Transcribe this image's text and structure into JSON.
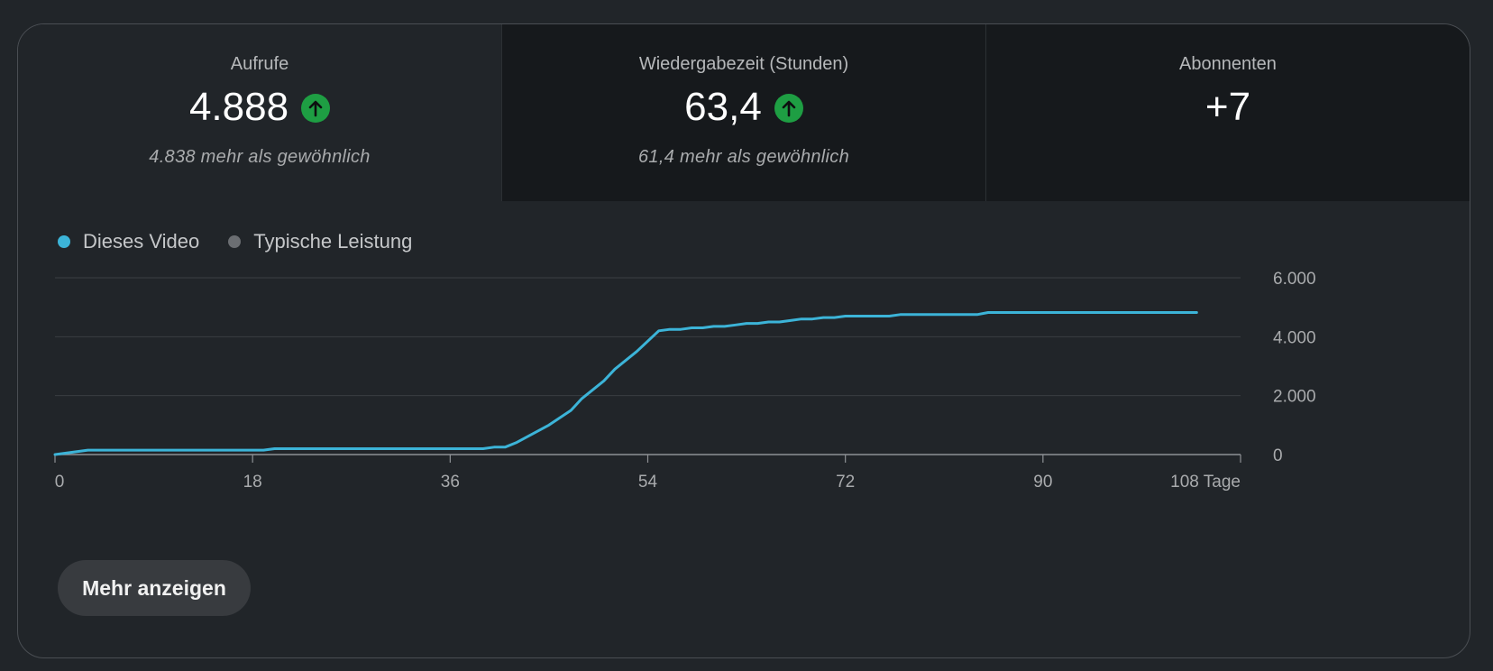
{
  "metrics": [
    {
      "title": "Aufrufe",
      "value": "4.888",
      "trend": "up",
      "subtitle": "4.838 mehr als gewöhnlich"
    },
    {
      "title": "Wiedergabezeit (Stunden)",
      "value": "63,4",
      "trend": "up",
      "subtitle": "61,4 mehr als gewöhnlich"
    },
    {
      "title": "Abonnenten",
      "value": "+7"
    }
  ],
  "icons": {
    "trend_up": "arrow-up-circle-icon"
  },
  "colors": {
    "series_this_video": "#3cb4d8",
    "series_typical": "#6b6e72",
    "trend_up": "#1e9e43",
    "selected_tab_bg": "#212529",
    "unselected_tab_bg": "#16191c"
  },
  "chart_data": {
    "type": "line",
    "legend_position": "top-left",
    "grid": true,
    "x_label_suffix": "Tage",
    "x_ticks": [
      0,
      18,
      36,
      54,
      72,
      90,
      108
    ],
    "x_tick_labels": [
      "0",
      "18",
      "36",
      "54",
      "72",
      "90",
      "108 Tage"
    ],
    "y_ticks": [
      0,
      2000,
      4000,
      6000
    ],
    "y_tick_labels": [
      "0",
      "2.000",
      "4.000",
      "6.000"
    ],
    "xlim": [
      0,
      108
    ],
    "ylim": [
      0,
      6000
    ],
    "series": [
      {
        "name": "Dieses Video",
        "x": [
          0,
          3,
          19,
          20,
          39,
          40,
          41,
          42,
          45,
          47,
          48,
          50,
          51,
          53,
          55,
          56,
          57,
          58,
          59,
          60,
          61,
          62,
          63,
          64,
          65,
          66,
          67,
          68,
          69,
          70,
          71,
          72,
          76,
          77,
          84,
          85,
          104
        ],
        "y": [
          0,
          150,
          150,
          200,
          200,
          250,
          250,
          400,
          1000,
          1500,
          1900,
          2500,
          2900,
          3500,
          4200,
          4250,
          4250,
          4300,
          4300,
          4350,
          4350,
          4400,
          4450,
          4450,
          4500,
          4500,
          4550,
          4600,
          4600,
          4650,
          4650,
          4700,
          4700,
          4750,
          4750,
          4820,
          4820
        ]
      },
      {
        "name": "Typische Leistung",
        "x": [],
        "y": []
      }
    ]
  },
  "button": {
    "label": "Mehr anzeigen"
  }
}
